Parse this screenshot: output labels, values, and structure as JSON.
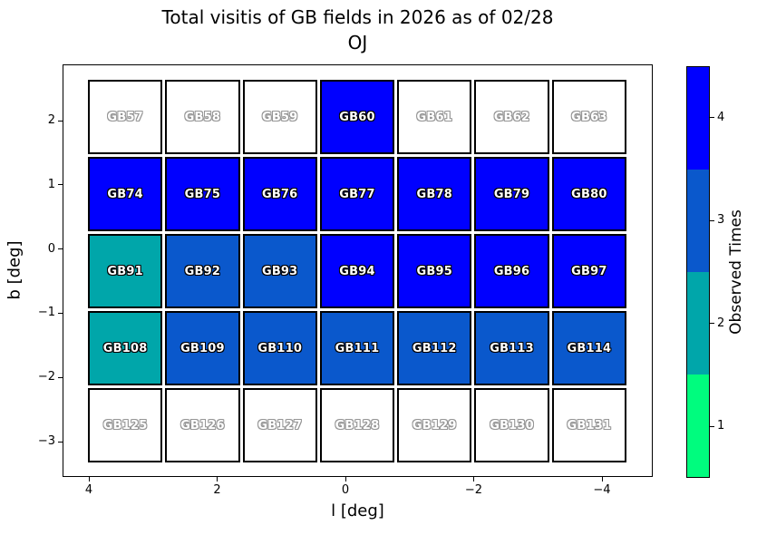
{
  "title": {
    "line1": "Total visitis of GB fields in 2026 as of 02/28",
    "line2": "OJ"
  },
  "axes": {
    "xlabel": "l [deg]",
    "ylabel": "b [deg]"
  },
  "colorbar": {
    "label": "Observed Times",
    "tick_labels": [
      "4",
      "3",
      "2",
      "1"
    ],
    "segment_colors_top_to_bottom": [
      "#0000ff",
      "#0a58cc",
      "#00a6aa",
      "#00fc7e"
    ]
  },
  "chart_data": {
    "type": "heatmap",
    "title": "Total visitis of GB fields in 2026 as of 02/28\nOJ",
    "xlabel": "l [deg]",
    "ylabel": "b [deg]",
    "colorbar_label": "Observed Times",
    "x_tick_labels": [
      "4",
      "2",
      "0",
      "−2",
      "−4"
    ],
    "y_tick_labels": [
      "2",
      "1",
      "0",
      "−1",
      "−2",
      "−3"
    ],
    "x_axis_inverted": true,
    "xlim": [
      4.4,
      -4.8
    ],
    "ylim": [
      -3.6,
      2.6
    ],
    "colorbar_ticks": [
      4,
      3,
      2,
      1
    ],
    "value_colors": {
      "0": "#ffffff",
      "1": "#00fc7e",
      "2": "#00a6aa",
      "3": "#0a58cc",
      "4": "#0000ff"
    },
    "unobserved_value": 0,
    "rows": [
      {
        "fields": [
          "GB57",
          "GB58",
          "GB59",
          "GB60",
          "GB61",
          "GB62",
          "GB63"
        ],
        "values": [
          0,
          0,
          0,
          4,
          0,
          0,
          0
        ]
      },
      {
        "fields": [
          "GB74",
          "GB75",
          "GB76",
          "GB77",
          "GB78",
          "GB79",
          "GB80"
        ],
        "values": [
          4,
          4,
          4,
          4,
          4,
          4,
          4
        ]
      },
      {
        "fields": [
          "GB91",
          "GB92",
          "GB93",
          "GB94",
          "GB95",
          "GB96",
          "GB97"
        ],
        "values": [
          2,
          3,
          3,
          4,
          4,
          4,
          4
        ]
      },
      {
        "fields": [
          "GB108",
          "GB109",
          "GB110",
          "GB111",
          "GB112",
          "GB113",
          "GB114"
        ],
        "values": [
          2,
          3,
          3,
          3,
          3,
          3,
          3
        ]
      },
      {
        "fields": [
          "GB125",
          "GB126",
          "GB127",
          "GB128",
          "GB129",
          "GB130",
          "GB131"
        ],
        "values": [
          0,
          0,
          0,
          0,
          0,
          0,
          0
        ]
      }
    ]
  }
}
